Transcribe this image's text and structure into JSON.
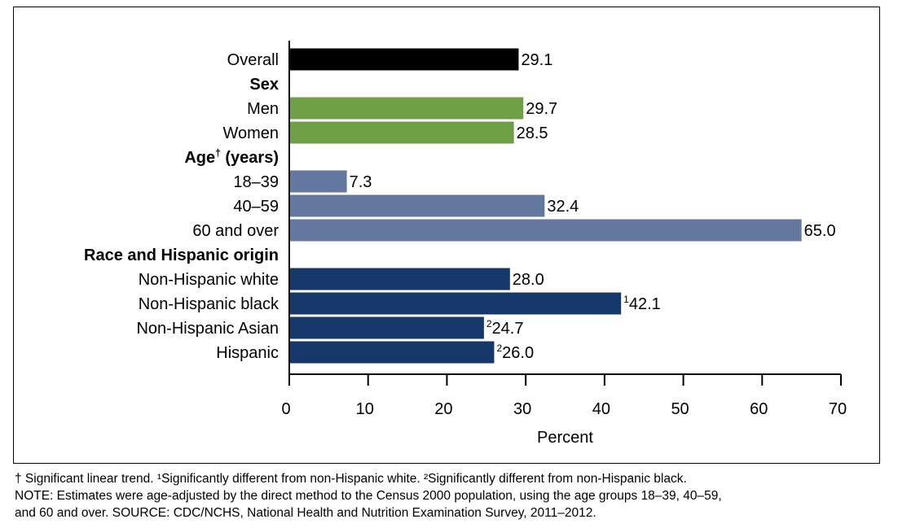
{
  "chart_data": {
    "type": "bar",
    "orientation": "horizontal",
    "xlabel": "Percent",
    "xlim": [
      0,
      70
    ],
    "xticks": [
      "0",
      "10",
      "20",
      "30",
      "40",
      "50",
      "60",
      "70"
    ],
    "grid": false,
    "rows": [
      {
        "label": "Overall",
        "kind": "bar",
        "value": 29.1,
        "value_label": "29.1",
        "sup": "",
        "color": "#000000"
      },
      {
        "label": "Sex",
        "kind": "header"
      },
      {
        "label": "Men",
        "kind": "bar",
        "value": 29.7,
        "value_label": "29.7",
        "sup": "",
        "color": "#6e9e45"
      },
      {
        "label": "Women",
        "kind": "bar",
        "value": 28.5,
        "value_label": "28.5",
        "sup": "",
        "color": "#6e9e45"
      },
      {
        "label": "Age",
        "label_sup": "†",
        "label_suffix": " (years)",
        "kind": "header"
      },
      {
        "label": "18–39",
        "kind": "bar",
        "value": 7.3,
        "value_label": "7.3",
        "sup": "",
        "color": "#64789f"
      },
      {
        "label": "40–59",
        "kind": "bar",
        "value": 32.4,
        "value_label": "32.4",
        "sup": "",
        "color": "#64789f"
      },
      {
        "label": "60 and over",
        "kind": "bar",
        "value": 65.0,
        "value_label": "65.0",
        "sup": "",
        "color": "#64789f"
      },
      {
        "label": "Race and Hispanic origin",
        "kind": "header"
      },
      {
        "label": "Non-Hispanic white",
        "kind": "bar",
        "value": 28.0,
        "value_label": "28.0",
        "sup": "",
        "color": "#163769"
      },
      {
        "label": "Non-Hispanic black",
        "kind": "bar",
        "value": 42.1,
        "value_label": "42.1",
        "sup": "1",
        "color": "#163769"
      },
      {
        "label": "Non-Hispanic Asian",
        "kind": "bar",
        "value": 24.7,
        "value_label": "24.7",
        "sup": "2",
        "color": "#163769"
      },
      {
        "label": "Hispanic",
        "kind": "bar",
        "value": 26.0,
        "value_label": "26.0",
        "sup": "2",
        "color": "#163769"
      }
    ]
  },
  "footnotes": {
    "line1": "† Significant linear trend. ¹Significantly different from non-Hispanic white. ²Significantly different from non-Hispanic black.",
    "line2": "NOTE: Estimates were age-adjusted by the direct method to the Census 2000 population, using the age groups 18–39, 40–59,",
    "line3": "and 60 and over. SOURCE: CDC/NCHS, National Health and Nutrition Examination Survey, 2011–2012."
  }
}
